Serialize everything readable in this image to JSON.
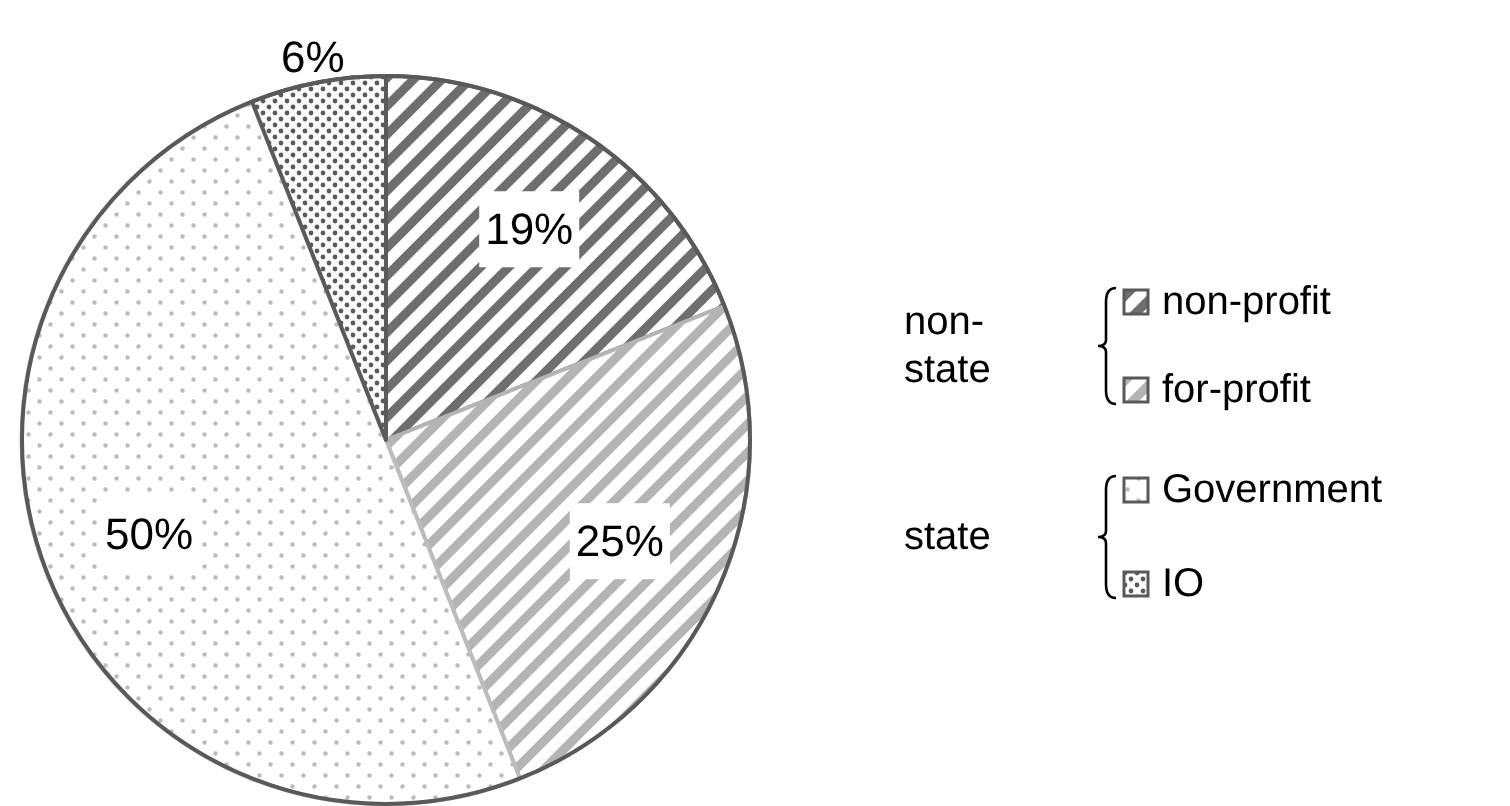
{
  "chart_data": {
    "type": "pie",
    "categories": [
      "non-profit",
      "for-profit",
      "Government",
      "IO"
    ],
    "values": [
      19,
      25,
      50,
      6
    ],
    "colors": [
      "#6e6e6e",
      "#b4b4b4",
      "#bcbcbc",
      "#5a5a5a"
    ],
    "value_labels": [
      "19%",
      "25%",
      "50%",
      "6%"
    ],
    "legend": "right",
    "annotations": [
      "non-state",
      "state"
    ]
  }
}
